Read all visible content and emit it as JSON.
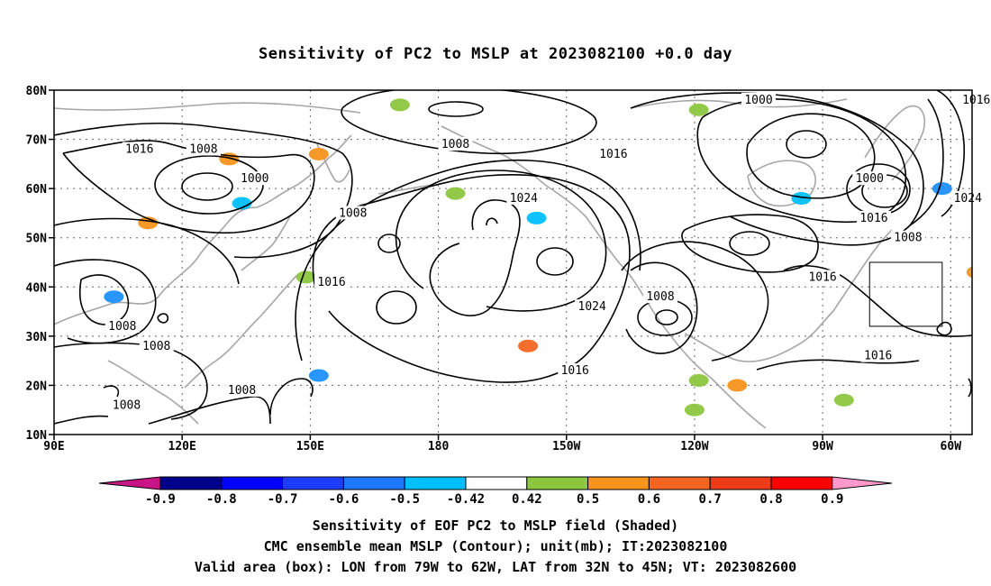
{
  "title": "Sensitivity of PC2 to MSLP at 2023082100 +0.0 day",
  "map": {
    "lon_range": [
      90,
      305
    ],
    "lat_range": [
      10,
      80
    ],
    "lat_ticks": [
      {
        "lat": 80,
        "label": "80N"
      },
      {
        "lat": 70,
        "label": "70N"
      },
      {
        "lat": 60,
        "label": "60N"
      },
      {
        "lat": 50,
        "label": "50N"
      },
      {
        "lat": 40,
        "label": "40N"
      },
      {
        "lat": 30,
        "label": "30N"
      },
      {
        "lat": 20,
        "label": "20N"
      },
      {
        "lat": 10,
        "label": "10N"
      }
    ],
    "lon_ticks": [
      {
        "lon": 90,
        "label": "90E"
      },
      {
        "lon": 120,
        "label": "120E"
      },
      {
        "lon": 150,
        "label": "150E"
      },
      {
        "lon": 180,
        "label": "180"
      },
      {
        "lon": 210,
        "label": "150W"
      },
      {
        "lon": 240,
        "label": "120W"
      },
      {
        "lon": 270,
        "label": "90W"
      },
      {
        "lon": 300,
        "label": "60W"
      }
    ],
    "valid_box": {
      "lon_w": 281,
      "lon_e": 298,
      "lat_s": 32,
      "lat_n": 45
    },
    "contour_labels": [
      {
        "text": "1016",
        "lon": 110,
        "lat": 68
      },
      {
        "text": "1008",
        "lon": 125,
        "lat": 68
      },
      {
        "text": "1000",
        "lon": 137,
        "lat": 62
      },
      {
        "text": "1008",
        "lon": 184,
        "lat": 69
      },
      {
        "text": "1016",
        "lon": 221,
        "lat": 67
      },
      {
        "text": "1000",
        "lon": 255,
        "lat": 78
      },
      {
        "text": "1000",
        "lon": 281,
        "lat": 62
      },
      {
        "text": "1016",
        "lon": 282,
        "lat": 54
      },
      {
        "text": "1008",
        "lon": 290,
        "lat": 50
      },
      {
        "text": "1024",
        "lon": 200,
        "lat": 58
      },
      {
        "text": "1008",
        "lon": 160,
        "lat": 55
      },
      {
        "text": "1016",
        "lon": 155,
        "lat": 41
      },
      {
        "text": "1016",
        "lon": 270,
        "lat": 42
      },
      {
        "text": "1008",
        "lon": 232,
        "lat": 38
      },
      {
        "text": "1024",
        "lon": 216,
        "lat": 36
      },
      {
        "text": "1008",
        "lon": 106,
        "lat": 32
      },
      {
        "text": "1008",
        "lon": 114,
        "lat": 28
      },
      {
        "text": "1016",
        "lon": 212,
        "lat": 23
      },
      {
        "text": "1008",
        "lon": 134,
        "lat": 19
      },
      {
        "text": "1008",
        "lon": 107,
        "lat": 16
      },
      {
        "text": "1016",
        "lon": 283,
        "lat": 26
      },
      {
        "text": "1024",
        "lon": 304,
        "lat": 58
      },
      {
        "text": "1016",
        "lon": 306,
        "lat": 78
      }
    ],
    "shaded_patches": [
      {
        "lon": 152,
        "lat": 67,
        "color": "#f7941d"
      },
      {
        "lon": 201,
        "lat": 28,
        "color": "#f26522"
      },
      {
        "lon": 298,
        "lat": 60,
        "color": "#1e90ff"
      },
      {
        "lon": 104,
        "lat": 38,
        "color": "#1e90ff"
      },
      {
        "lon": 306,
        "lat": 43,
        "color": "#f7941d"
      },
      {
        "lon": 131,
        "lat": 66,
        "color": "#f7941d"
      },
      {
        "lon": 112,
        "lat": 53,
        "color": "#f7941d"
      },
      {
        "lon": 275,
        "lat": 17,
        "color": "#8dc63f"
      },
      {
        "lon": 241,
        "lat": 21,
        "color": "#8dc63f"
      },
      {
        "lon": 240,
        "lat": 15,
        "color": "#8dc63f"
      },
      {
        "lon": 149,
        "lat": 42,
        "color": "#8dc63f"
      },
      {
        "lon": 184,
        "lat": 59,
        "color": "#8dc63f"
      },
      {
        "lon": 241,
        "lat": 76,
        "color": "#8dc63f"
      },
      {
        "lon": 171,
        "lat": 77,
        "color": "#8dc63f"
      },
      {
        "lon": 152,
        "lat": 22,
        "color": "#1e90ff"
      },
      {
        "lon": 250,
        "lat": 20,
        "color": "#f7941d"
      },
      {
        "lon": 265,
        "lat": 58,
        "color": "#00bfff"
      },
      {
        "lon": 203,
        "lat": 54,
        "color": "#00bfff"
      },
      {
        "lon": 134,
        "lat": 57,
        "color": "#00bfff"
      }
    ]
  },
  "colorbar": {
    "labels": [
      "-0.9",
      "-0.8",
      "-0.7",
      "-0.6",
      "-0.5",
      "-0.42",
      "0.42",
      "0.5",
      "0.6",
      "0.7",
      "0.8",
      "0.9"
    ],
    "colors": [
      "#00008b",
      "#0000ff",
      "#1e3cff",
      "#1e78ff",
      "#00bfff",
      "#ffffff",
      "#8dc63f",
      "#f7941d",
      "#f26522",
      "#ee3b1a",
      "#ff0000"
    ],
    "low_end_color": "#c71585",
    "high_end_color": "#ff99cc"
  },
  "footer": {
    "line1": "Sensitivity of EOF PC2 to MSLP field (Shaded)",
    "line2": "CMC ensemble mean MSLP (Contour); unit(mb); IT:2023082100",
    "line3": "Valid area (box): LON from 79W to 62W, LAT from 32N to 45N; VT: 2023082600"
  }
}
